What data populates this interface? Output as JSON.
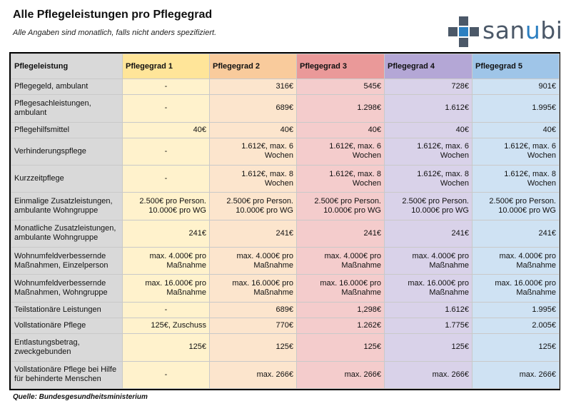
{
  "header": {
    "title": "Alle Pflegeleistungen pro Pflegegrad",
    "subtitle": "Alle Angaben sind monatlich, falls nicht anders spezifiziert."
  },
  "logo": {
    "text_start": "san",
    "text_accent": "u",
    "text_end": "bi",
    "colors": {
      "gray": "#4b5868",
      "blue": "#2c7fc1"
    }
  },
  "table": {
    "columns": [
      "Pflegeleistung",
      "Pflegegrad 1",
      "Pflegegrad 2",
      "Pflegegrad 3",
      "Pflegegrad 4",
      "Pflegegrad 5"
    ],
    "column_colors": [
      "#d9d9d9",
      "#ffe599",
      "#f9cb9c",
      "#ea9999",
      "#b4a7d6",
      "#9fc5e8"
    ],
    "rows": [
      {
        "label": "Pflegegeld, ambulant",
        "values": [
          "-",
          "316€",
          "545€",
          "728€",
          "901€"
        ]
      },
      {
        "label": "Pflegesachleistungen, ambulant",
        "values": [
          "-",
          "689€",
          "1.298€",
          "1.612€",
          "1.995€"
        ]
      },
      {
        "label": "Pflegehilfsmittel",
        "values": [
          "40€",
          "40€",
          "40€",
          "40€",
          "40€"
        ]
      },
      {
        "label": "Verhinderungspflege",
        "values": [
          "-",
          "1.612€, max. 6 Wochen",
          "1.612€, max. 6 Wochen",
          "1.612€, max. 6 Wochen",
          "1.612€, max. 6 Wochen"
        ]
      },
      {
        "label": "Kurzzeitpflege",
        "values": [
          "-",
          "1.612€, max. 8 Wochen",
          "1.612€, max. 8 Wochen",
          "1.612€, max. 8 Wochen",
          "1.612€, max. 8 Wochen"
        ]
      },
      {
        "label": "Einmalige Zusatzleistungen, ambulante Wohngruppe",
        "values": [
          "2.500€ pro Person. 10.000€ pro WG",
          "2.500€ pro Person. 10.000€ pro WG",
          "2.500€ pro Person. 10.000€ pro WG",
          "2.500€ pro Person. 10.000€ pro WG",
          "2.500€ pro Person. 10.000€ pro WG"
        ]
      },
      {
        "label": "Monatliche Zusatzleistungen, ambulante Wohngruppe",
        "values": [
          "241€",
          "241€",
          "241€",
          "241€",
          "241€"
        ]
      },
      {
        "label": "Wohnumfeldverbessernde Maßnahmen, Einzelperson",
        "values": [
          "max. 4.000€ pro Maßnahme",
          "max. 4.000€ pro Maßnahme",
          "max. 4.000€ pro Maßnahme",
          "max. 4.000€ pro Maßnahme",
          "max. 4.000€ pro Maßnahme"
        ]
      },
      {
        "label": "Wohnumfeldverbessernde Maßnahmen, Wohngruppe",
        "values": [
          "max. 16.000€ pro Maßnahme",
          "max. 16.000€ pro Maßnahme",
          "max. 16.000€ pro Maßnahme",
          "max. 16.000€ pro Maßnahme",
          "max. 16.000€ pro Maßnahme"
        ]
      },
      {
        "label": "Teilstationäre Leistungen",
        "values": [
          "-",
          "689€",
          "1,298€",
          "1.612€",
          "1.995€"
        ]
      },
      {
        "label": "Vollstationäre Pflege",
        "values": [
          "125€, Zuschuss",
          "770€",
          "1.262€",
          "1.775€",
          "2.005€"
        ]
      },
      {
        "label": "Entlastungsbetrag, zweckgebunden",
        "values": [
          "125€",
          "125€",
          "125€",
          "125€",
          "125€"
        ]
      },
      {
        "label": "Vollstationäre Pflege bei Hilfe für behinderte Menschen",
        "values": [
          "-",
          "max. 266€",
          "max. 266€",
          "max. 266€",
          "max. 266€"
        ]
      }
    ]
  },
  "footer": {
    "source": "Quelle: Bundesgesundheitsministerium"
  }
}
